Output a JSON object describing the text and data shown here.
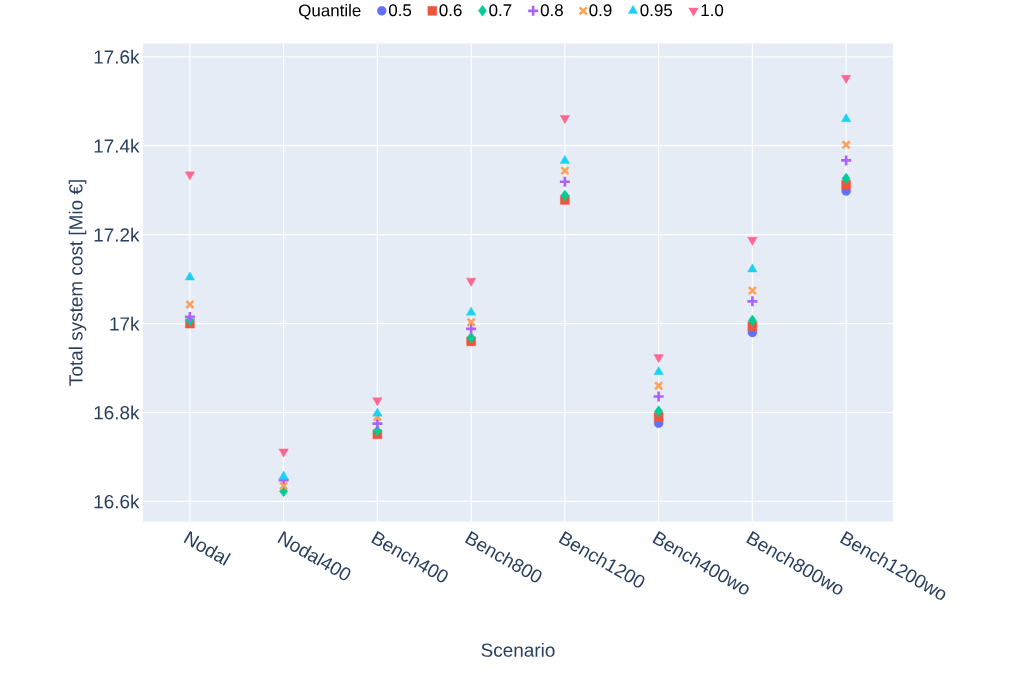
{
  "chart_data": {
    "type": "scatter",
    "xlabel": "Scenario",
    "ylabel": "Total system cost [Mio €]",
    "legend_title": "Quantile",
    "legend": "top",
    "grid": true,
    "categories": [
      "Nodal",
      "Nodal400",
      "Bench400",
      "Bench800",
      "Bench1200",
      "Bench400wo",
      "Bench800wo",
      "Bench1200wo"
    ],
    "ylim": [
      16555,
      17630
    ],
    "yticks": [
      {
        "value": 16600,
        "label": "16.6k"
      },
      {
        "value": 16800,
        "label": "16.8k"
      },
      {
        "value": 17000,
        "label": "17k"
      },
      {
        "value": 17200,
        "label": "17.2k"
      },
      {
        "value": 17400,
        "label": "17.4k"
      },
      {
        "value": 17600,
        "label": "17.6k"
      }
    ],
    "series": [
      {
        "name": "0.5",
        "color": "#636efa",
        "marker": "circle",
        "values": [
          null,
          null,
          null,
          null,
          null,
          16776,
          16980,
          17298
        ]
      },
      {
        "name": "0.6",
        "color": "#ef553b",
        "marker": "square",
        "values": [
          17000,
          null,
          16751,
          16960,
          17278,
          16790,
          16994,
          17312
        ]
      },
      {
        "name": "0.7",
        "color": "#00cc96",
        "marker": "diamond",
        "values": [
          17007,
          16623,
          16759,
          16968,
          17288,
          16803,
          17007,
          17326
        ]
      },
      {
        "name": "0.8",
        "color": "#ab63fa",
        "marker": "cross",
        "values": [
          17015,
          16648,
          16775,
          16988,
          17319,
          16836,
          17050,
          17367
        ]
      },
      {
        "name": "0.9",
        "color": "#ffa15a",
        "marker": "x",
        "values": [
          17043,
          16635,
          16790,
          17003,
          17344,
          16860,
          17074,
          17402
        ]
      },
      {
        "name": "0.95",
        "color": "#19d3f3",
        "marker": "triangle",
        "values": [
          17104,
          16656,
          16798,
          17025,
          17366,
          16891,
          17122,
          17460
        ]
      },
      {
        "name": "1.0",
        "color": "#ff6692",
        "marker": "triangle-down",
        "values": [
          17335,
          16712,
          16827,
          17096,
          17462,
          16924,
          17188,
          17552
        ]
      }
    ]
  }
}
